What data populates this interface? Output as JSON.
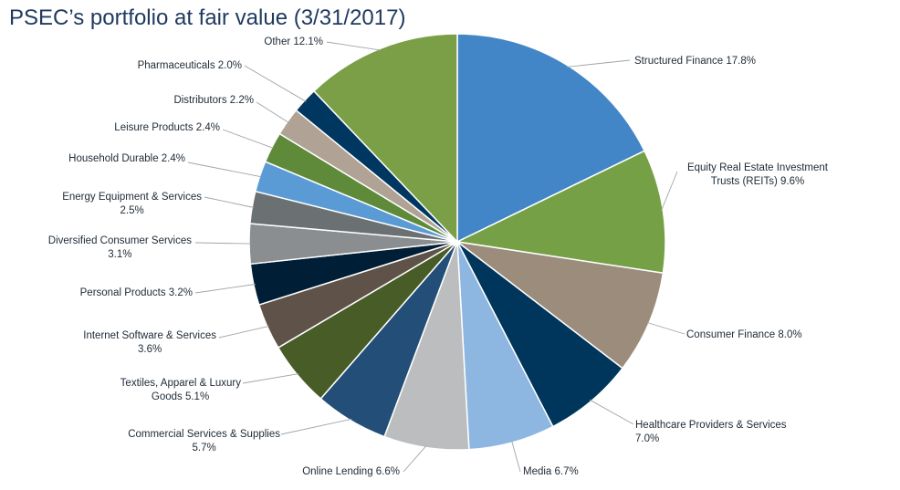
{
  "chart_data": {
    "type": "pie",
    "title": "PSEC’s portfolio at fair value (3/31/2017)",
    "slices": [
      {
        "label": [
          "Structured Finance 17.8%"
        ],
        "value": 17.8,
        "color": "#4286c7"
      },
      {
        "label": [
          "Equity Real Estate Investment",
          "Trusts (REITs) 9.6%"
        ],
        "value": 9.6,
        "color": "#76a045"
      },
      {
        "label": [
          "Consumer Finance  8.0%"
        ],
        "value": 8.0,
        "color": "#9c8c7c"
      },
      {
        "label": [
          "Healthcare Providers & Services",
          "7.0%"
        ],
        "value": 7.0,
        "color": "#00365c"
      },
      {
        "label": [
          "Media  6.7%"
        ],
        "value": 6.7,
        "color": "#8db6e0"
      },
      {
        "label": [
          "Online Lending  6.6%"
        ],
        "value": 6.6,
        "color": "#bcbdbf"
      },
      {
        "label": [
          "Commercial Services & Supplies",
          "5.7%"
        ],
        "value": 5.7,
        "color": "#234e78"
      },
      {
        "label": [
          "Textiles, Apparel & Luxury",
          "Goods  5.1%"
        ],
        "value": 5.1,
        "color": "#475c27"
      },
      {
        "label": [
          "Internet Software & Services",
          "3.6%"
        ],
        "value": 3.6,
        "color": "#5f5248"
      },
      {
        "label": [
          "Personal Products  3.2%"
        ],
        "value": 3.2,
        "color": "#001e35"
      },
      {
        "label": [
          "Diversified Consumer Services",
          "3.1%"
        ],
        "value": 3.1,
        "color": "#8a8e91"
      },
      {
        "label": [
          "Energy Equipment & Services",
          "2.5%"
        ],
        "value": 2.5,
        "color": "#6b7073"
      },
      {
        "label": [
          "Household Durable  2.4%"
        ],
        "value": 2.4,
        "color": "#5b9bd5"
      },
      {
        "label": [
          "Leisure Products  2.4%"
        ],
        "value": 2.4,
        "color": "#5e8a3a"
      },
      {
        "label": [
          "Distributors  2.2%"
        ],
        "value": 2.2,
        "color": "#b0a396"
      },
      {
        "label": [
          "Pharmaceuticals  2.0%"
        ],
        "value": 2.0,
        "color": "#003760"
      },
      {
        "label": [
          "Other 12.1%"
        ],
        "value": 12.1,
        "color": "#7a9f47"
      }
    ]
  }
}
